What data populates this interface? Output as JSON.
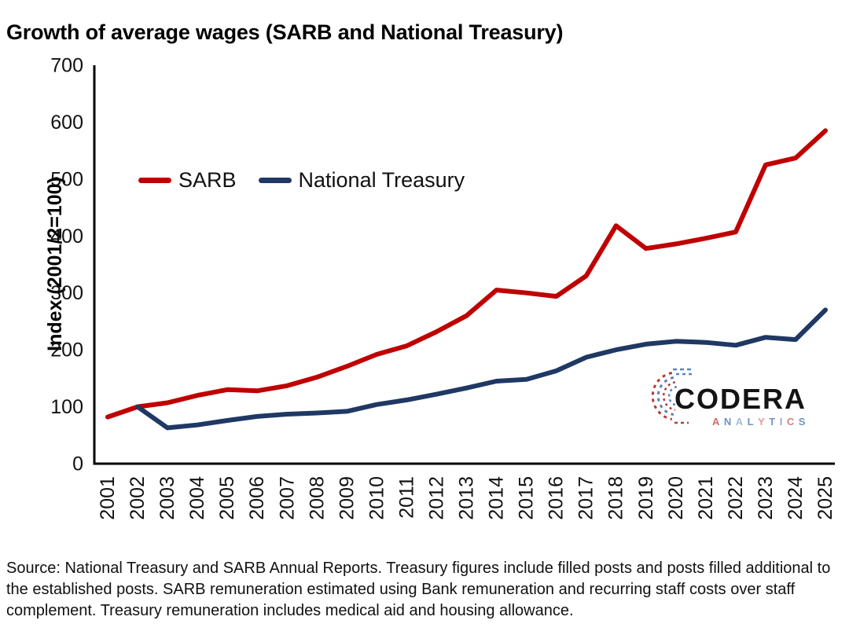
{
  "chart_data": {
    "type": "line",
    "title": "Growth of average wages (SARB and National Treasury)",
    "ylabel": "Index (2001/2=100)",
    "xlabel": "",
    "x": [
      2001,
      2002,
      2003,
      2004,
      2005,
      2006,
      2007,
      2008,
      2009,
      2010,
      2011,
      2012,
      2013,
      2014,
      2015,
      2016,
      2017,
      2018,
      2019,
      2020,
      2021,
      2022,
      2023,
      2024,
      2025
    ],
    "series": [
      {
        "name": "SARB",
        "color": "#C00000",
        "values": [
          82,
          100,
          107,
          120,
          130,
          128,
          137,
          152,
          171,
          192,
          207,
          232,
          260,
          305,
          300,
          294,
          330,
          418,
          378,
          386,
          396,
          407,
          525,
          537,
          585
        ]
      },
      {
        "name": "National Treasury",
        "color": "#1F3864",
        "values": [
          null,
          100,
          63,
          68,
          76,
          83,
          87,
          89,
          92,
          104,
          112,
          122,
          133,
          145,
          148,
          163,
          187,
          200,
          210,
          215,
          213,
          208,
          222,
          218,
          270
        ]
      }
    ],
    "ylim": [
      0,
      700
    ],
    "yticks": [
      0,
      100,
      200,
      300,
      400,
      500,
      600,
      700
    ],
    "grid": false,
    "legend_position": "inside-top-left"
  },
  "source_note": "Source: National Treasury and SARB Annual Reports. Treasury figures include filled posts and posts filled additional to the established posts. SARB remuneration estimated using Bank remuneration and recurring staff costs over staff complement. Treasury remuneration includes medical aid and housing allowance.",
  "logo": {
    "name": "CODERA",
    "subtitle": "ANALYTICS",
    "subtitle_letters": [
      {
        "ch": "A",
        "color": "#d16a6a"
      },
      {
        "ch": "N",
        "color": "#7193c0"
      },
      {
        "ch": "A",
        "color": "#a9bdd8"
      },
      {
        "ch": "L",
        "color": "#7193c0"
      },
      {
        "ch": "Y",
        "color": "#dd9a9a"
      },
      {
        "ch": "T",
        "color": "#7193c0"
      },
      {
        "ch": "I",
        "color": "#8fa9cc"
      },
      {
        "ch": "C",
        "color": "#cf8282"
      },
      {
        "ch": "S",
        "color": "#7193c0"
      }
    ],
    "icon_red": "#b23a3a",
    "icon_blue": "#5b84b8"
  },
  "colors": {
    "axis": "#000000",
    "tick_text": "#111111",
    "sarb_line": "#C00000",
    "treasury_line": "#1F3864"
  }
}
